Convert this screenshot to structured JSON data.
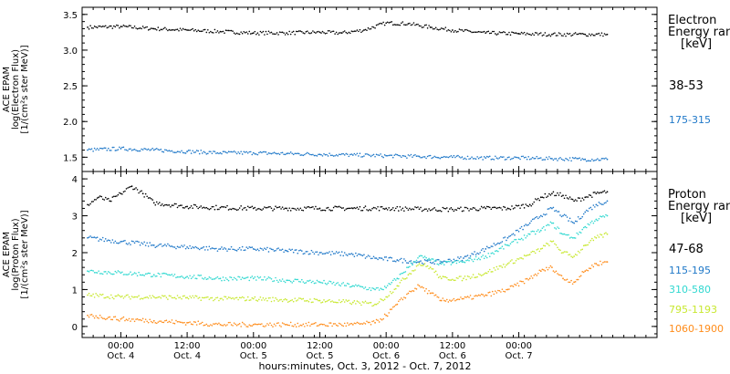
{
  "chart_data": {
    "type": "scatter",
    "xlabel": "hours:minutes, Oct. 3, 2012 - Oct. 7, 2012",
    "x_ticks": [
      {
        "time": "00:00",
        "date": "Oct. 4"
      },
      {
        "time": "12:00",
        "date": "Oct. 4"
      },
      {
        "time": "00:00",
        "date": "Oct. 5"
      },
      {
        "time": "12:00",
        "date": "Oct. 5"
      },
      {
        "time": "00:00",
        "date": "Oct. 6"
      },
      {
        "time": "12:00",
        "date": "Oct. 6"
      },
      {
        "time": "00:00",
        "date": "Oct. 7"
      }
    ],
    "xlim_hours": [
      -7,
      97
    ],
    "panels": [
      {
        "name": "electron",
        "ylabel": [
          "ACE EPAM",
          "log(Electron Flux)",
          "[1/(cm²s ster MeV)]"
        ],
        "ylim": [
          1.3,
          3.6
        ],
        "yticks": [
          1.5,
          2.0,
          2.5,
          3.0,
          3.5
        ],
        "ytick_labels": [
          "1.5",
          "2.0",
          "2.5",
          "3.0",
          "3.5"
        ],
        "legend_title": [
          "Electron",
          "Energy ran"
        ],
        "legend_unit": "[keV]",
        "series": [
          {
            "name": "38-53",
            "color": "#000000",
            "points": [
              [
                -6,
                3.32
              ],
              [
                0,
                3.33
              ],
              [
                6,
                3.3
              ],
              [
                12,
                3.28
              ],
              [
                18,
                3.26
              ],
              [
                24,
                3.24
              ],
              [
                30,
                3.24
              ],
              [
                36,
                3.25
              ],
              [
                40,
                3.24
              ],
              [
                44,
                3.28
              ],
              [
                48,
                3.38
              ],
              [
                52,
                3.37
              ],
              [
                56,
                3.32
              ],
              [
                60,
                3.28
              ],
              [
                66,
                3.24
              ],
              [
                72,
                3.23
              ],
              [
                78,
                3.22
              ],
              [
                84,
                3.22
              ],
              [
                88,
                3.22
              ]
            ]
          },
          {
            "name": "175-315",
            "color": "#1f78c8",
            "points": [
              [
                -6,
                1.6
              ],
              [
                0,
                1.62
              ],
              [
                6,
                1.6
              ],
              [
                12,
                1.58
              ],
              [
                18,
                1.56
              ],
              [
                24,
                1.56
              ],
              [
                30,
                1.55
              ],
              [
                36,
                1.54
              ],
              [
                42,
                1.53
              ],
              [
                48,
                1.52
              ],
              [
                54,
                1.51
              ],
              [
                60,
                1.5
              ],
              [
                66,
                1.49
              ],
              [
                72,
                1.49
              ],
              [
                78,
                1.48
              ],
              [
                84,
                1.47
              ],
              [
                88,
                1.47
              ]
            ]
          }
        ]
      },
      {
        "name": "proton",
        "ylabel": [
          "ACE EPAM",
          "log(Proton Flux)",
          "[1/(cm²s ster MeV)]"
        ],
        "ylim": [
          -0.3,
          4.2
        ],
        "yticks": [
          0,
          1,
          2,
          3,
          4
        ],
        "ytick_labels": [
          "0",
          "1",
          "2",
          "3",
          "4"
        ],
        "legend_title": [
          "Proton",
          "Energy ran"
        ],
        "legend_unit": "[keV]",
        "series": [
          {
            "name": "47-68",
            "color": "#000000",
            "points": [
              [
                -6,
                3.3
              ],
              [
                -4,
                3.5
              ],
              [
                -2,
                3.4
              ],
              [
                0,
                3.6
              ],
              [
                2,
                3.8
              ],
              [
                4,
                3.6
              ],
              [
                6,
                3.35
              ],
              [
                12,
                3.25
              ],
              [
                18,
                3.22
              ],
              [
                24,
                3.2
              ],
              [
                30,
                3.2
              ],
              [
                36,
                3.2
              ],
              [
                42,
                3.2
              ],
              [
                48,
                3.2
              ],
              [
                54,
                3.18
              ],
              [
                60,
                3.17
              ],
              [
                66,
                3.2
              ],
              [
                70,
                3.2
              ],
              [
                74,
                3.3
              ],
              [
                76,
                3.5
              ],
              [
                78,
                3.6
              ],
              [
                80,
                3.55
              ],
              [
                82,
                3.4
              ],
              [
                84,
                3.5
              ],
              [
                86,
                3.6
              ],
              [
                88,
                3.65
              ]
            ]
          },
          {
            "name": "115-195",
            "color": "#1f78c8",
            "points": [
              [
                -6,
                2.4
              ],
              [
                0,
                2.3
              ],
              [
                6,
                2.2
              ],
              [
                12,
                2.15
              ],
              [
                18,
                2.1
              ],
              [
                24,
                2.1
              ],
              [
                30,
                2.05
              ],
              [
                36,
                2.0
              ],
              [
                42,
                1.95
              ],
              [
                46,
                1.85
              ],
              [
                50,
                1.8
              ],
              [
                54,
                1.75
              ],
              [
                58,
                1.75
              ],
              [
                62,
                1.85
              ],
              [
                66,
                2.1
              ],
              [
                70,
                2.4
              ],
              [
                74,
                2.8
              ],
              [
                76,
                3.0
              ],
              [
                78,
                3.2
              ],
              [
                80,
                3.0
              ],
              [
                82,
                2.8
              ],
              [
                84,
                3.1
              ],
              [
                86,
                3.3
              ],
              [
                88,
                3.4
              ]
            ]
          },
          {
            "name": "310-580",
            "color": "#30d8d0",
            "points": [
              [
                -6,
                1.5
              ],
              [
                0,
                1.45
              ],
              [
                6,
                1.4
              ],
              [
                12,
                1.35
              ],
              [
                18,
                1.3
              ],
              [
                24,
                1.3
              ],
              [
                30,
                1.25
              ],
              [
                36,
                1.2
              ],
              [
                42,
                1.1
              ],
              [
                46,
                1.0
              ],
              [
                48,
                1.05
              ],
              [
                50,
                1.3
              ],
              [
                52,
                1.6
              ],
              [
                54,
                1.9
              ],
              [
                56,
                1.8
              ],
              [
                58,
                1.7
              ],
              [
                62,
                1.75
              ],
              [
                66,
                1.9
              ],
              [
                70,
                2.2
              ],
              [
                74,
                2.5
              ],
              [
                76,
                2.6
              ],
              [
                78,
                2.8
              ],
              [
                80,
                2.5
              ],
              [
                82,
                2.4
              ],
              [
                84,
                2.7
              ],
              [
                86,
                2.9
              ],
              [
                88,
                3.0
              ]
            ]
          },
          {
            "name": "795-1193",
            "color": "#c8e830",
            "points": [
              [
                -6,
                0.85
              ],
              [
                0,
                0.8
              ],
              [
                6,
                0.8
              ],
              [
                12,
                0.78
              ],
              [
                18,
                0.75
              ],
              [
                24,
                0.75
              ],
              [
                30,
                0.72
              ],
              [
                36,
                0.7
              ],
              [
                42,
                0.65
              ],
              [
                46,
                0.6
              ],
              [
                48,
                0.8
              ],
              [
                50,
                1.1
              ],
              [
                52,
                1.4
              ],
              [
                54,
                1.7
              ],
              [
                56,
                1.6
              ],
              [
                58,
                1.3
              ],
              [
                62,
                1.3
              ],
              [
                66,
                1.45
              ],
              [
                70,
                1.7
              ],
              [
                74,
                1.95
              ],
              [
                76,
                2.1
              ],
              [
                78,
                2.3
              ],
              [
                80,
                2.0
              ],
              [
                82,
                1.9
              ],
              [
                84,
                2.2
              ],
              [
                86,
                2.4
              ],
              [
                88,
                2.5
              ]
            ]
          },
          {
            "name": "1060-1900",
            "color": "#ff8c1a",
            "points": [
              [
                -6,
                0.3
              ],
              [
                0,
                0.2
              ],
              [
                6,
                0.15
              ],
              [
                12,
                0.1
              ],
              [
                18,
                0.05
              ],
              [
                24,
                0.05
              ],
              [
                30,
                0.05
              ],
              [
                36,
                0.05
              ],
              [
                42,
                0.05
              ],
              [
                46,
                0.1
              ],
              [
                48,
                0.3
              ],
              [
                50,
                0.6
              ],
              [
                52,
                0.9
              ],
              [
                54,
                1.1
              ],
              [
                56,
                0.9
              ],
              [
                58,
                0.7
              ],
              [
                62,
                0.75
              ],
              [
                66,
                0.85
              ],
              [
                70,
                1.0
              ],
              [
                74,
                1.3
              ],
              [
                76,
                1.5
              ],
              [
                78,
                1.6
              ],
              [
                80,
                1.3
              ],
              [
                82,
                1.2
              ],
              [
                84,
                1.5
              ],
              [
                86,
                1.7
              ],
              [
                88,
                1.75
              ]
            ]
          }
        ]
      }
    ]
  }
}
